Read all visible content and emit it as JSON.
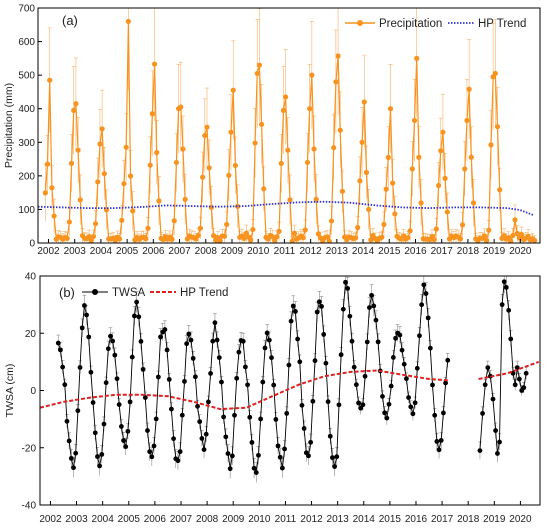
{
  "chart_data": [
    {
      "type": "line",
      "panel_label": "(a)",
      "title": "",
      "xlabel": "",
      "ylabel": "Precipitation (mm)",
      "xlim": [
        2001.6,
        2020.75
      ],
      "ylim": [
        0,
        700
      ],
      "x_ticks": [
        2002,
        2003,
        2004,
        2005,
        2006,
        2007,
        2008,
        2009,
        2010,
        2011,
        2012,
        2013,
        2014,
        2015,
        2016,
        2017,
        2018,
        2019,
        2020
      ],
      "y_ticks": [
        0,
        100,
        200,
        300,
        400,
        500,
        600,
        700
      ],
      "legend_position": "top-right",
      "peaks": [
        {
          "x": 2002.0,
          "peak": 485,
          "shoulder": 235
        },
        {
          "x": 2003.0,
          "peak": 415,
          "shoulder": 395
        },
        {
          "x": 2004.0,
          "peak": 340,
          "shoulder": 295
        },
        {
          "x": 2005.0,
          "peak": 660,
          "shoulder": 285
        },
        {
          "x": 2006.0,
          "peak": 533,
          "shoulder": 385
        },
        {
          "x": 2007.0,
          "peak": 405,
          "shoulder": 400
        },
        {
          "x": 2008.0,
          "peak": 345,
          "shoulder": 320
        },
        {
          "x": 2009.0,
          "peak": 455,
          "shoulder": 330
        },
        {
          "x": 2010.0,
          "peak": 530,
          "shoulder": 505
        },
        {
          "x": 2011.0,
          "peak": 435,
          "shoulder": 395
        },
        {
          "x": 2012.0,
          "peak": 500,
          "shoulder": 400
        },
        {
          "x": 2013.0,
          "peak": 557,
          "shoulder": 480
        },
        {
          "x": 2014.0,
          "peak": 420,
          "shoulder": 300
        },
        {
          "x": 2015.0,
          "peak": 400,
          "shoulder": 255
        },
        {
          "x": 2016.0,
          "peak": 550,
          "shoulder": 365
        },
        {
          "x": 2017.0,
          "peak": 330,
          "shoulder": 275
        },
        {
          "x": 2018.0,
          "peak": 458,
          "shoulder": 365
        },
        {
          "x": 2019.0,
          "peak": 505,
          "shoulder": 495
        },
        {
          "x": 2020.0,
          "peak": 25,
          "shoulder": 15
        }
      ],
      "series": [
        {
          "name": "Precipitation",
          "color": "#f7931e",
          "style": "line-markers-errorbars"
        },
        {
          "name": "HP Trend",
          "color": "#3333cc",
          "style": "dotted",
          "x": [
            2001.6,
            2002.5,
            2003.5,
            2004.5,
            2005.5,
            2006.5,
            2007.5,
            2008.5,
            2009.5,
            2010.5,
            2011.5,
            2012.5,
            2013.5,
            2014.5,
            2015.5,
            2016.5,
            2017.5,
            2018.5,
            2019.5,
            2020.0,
            2020.5
          ],
          "values": [
            108,
            106,
            104,
            104,
            107,
            112,
            110,
            108,
            110,
            116,
            121,
            123,
            120,
            112,
            106,
            104,
            106,
            106,
            104,
            98,
            83
          ]
        }
      ]
    },
    {
      "type": "line",
      "panel_label": "(b)",
      "title": "",
      "xlabel": "",
      "ylabel": "TWSA (cm)",
      "xlim": [
        2001.6,
        2020.75
      ],
      "ylim": [
        -40,
        40
      ],
      "x_ticks": [
        2002,
        2003,
        2004,
        2005,
        2006,
        2007,
        2008,
        2009,
        2010,
        2011,
        2012,
        2013,
        2014,
        2015,
        2016,
        2017,
        2018,
        2019,
        2020
      ],
      "y_ticks": [
        -40,
        -20,
        0,
        20,
        40
      ],
      "legend_position": "top-left",
      "gap": [
        2017.5,
        2018.4
      ],
      "extrema": {
        "years": [
          2002.3,
          2003.3,
          2004.3,
          2005.3,
          2006.3,
          2007.3,
          2008.3,
          2009.3,
          2010.3,
          2011.3,
          2012.3,
          2013.3,
          2014.3,
          2015.3,
          2016.3,
          2017.3,
          2019.3
        ],
        "maxima": [
          16,
          28,
          19,
          29,
          22,
          20,
          22,
          19,
          19,
          29,
          31,
          36,
          33,
          20,
          36,
          15,
          38
        ],
        "minima": [
          -25,
          -27,
          -21,
          -25,
          -26,
          -20,
          -26,
          -28,
          -26,
          -24,
          -28,
          -8,
          -8,
          -9,
          -19,
          -12,
          -24
        ]
      },
      "series": [
        {
          "name": "TWSA",
          "color": "#000000",
          "style": "line-markers-errorbars"
        },
        {
          "name": "HP Trend",
          "color": "#e02020",
          "style": "dashed",
          "x": [
            2001.6,
            2002.5,
            2003.5,
            2004.5,
            2005.5,
            2006.5,
            2007.5,
            2008.5,
            2009.5,
            2010.5,
            2011.5,
            2012.5,
            2013.5,
            2014.5,
            2015.5,
            2016.5,
            2017.3,
            2018.4,
            2019.5,
            2020.7
          ],
          "values": [
            -6,
            -4,
            -2.5,
            -1.5,
            -1.5,
            -2,
            -4,
            -6.5,
            -6,
            -2,
            2,
            5,
            6.5,
            7,
            5.5,
            4,
            3.5,
            4,
            6,
            10
          ]
        }
      ]
    }
  ]
}
